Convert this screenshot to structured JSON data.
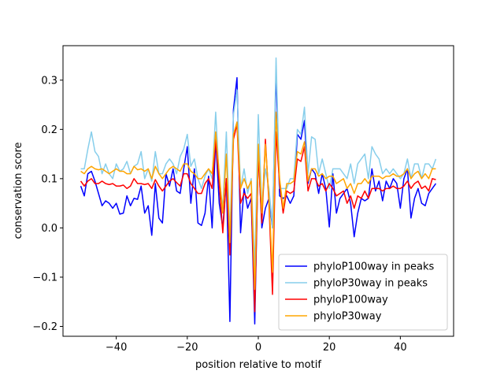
{
  "chart_data": {
    "type": "line",
    "title": "",
    "xlabel": "position relative to motif",
    "ylabel": "conservation score",
    "xlim": [
      -55,
      55
    ],
    "ylim": [
      -0.22,
      0.37
    ],
    "xticks": [
      -40,
      -20,
      0,
      20,
      40
    ],
    "xtick_labels": [
      "−40",
      "−20",
      "0",
      "20",
      "40"
    ],
    "yticks": [
      -0.2,
      -0.1,
      0.0,
      0.1,
      0.2,
      0.3
    ],
    "ytick_labels": [
      "−0.2",
      "−0.1",
      "0.0",
      "0.1",
      "0.2",
      "0.3"
    ],
    "grid": false,
    "legend_position": "lower-right",
    "x": [
      -50,
      -49,
      -48,
      -47,
      -46,
      -45,
      -44,
      -43,
      -42,
      -41,
      -40,
      -39,
      -38,
      -37,
      -36,
      -35,
      -34,
      -33,
      -32,
      -31,
      -30,
      -29,
      -28,
      -27,
      -26,
      -25,
      -24,
      -23,
      -22,
      -21,
      -20,
      -19,
      -18,
      -17,
      -16,
      -15,
      -14,
      -13,
      -12,
      -11,
      -10,
      -9,
      -8,
      -7,
      -6,
      -5,
      -4,
      -3,
      -2,
      -1,
      0,
      1,
      2,
      3,
      4,
      5,
      6,
      7,
      8,
      9,
      10,
      11,
      12,
      13,
      14,
      15,
      16,
      17,
      18,
      19,
      20,
      21,
      22,
      23,
      24,
      25,
      26,
      27,
      28,
      29,
      30,
      31,
      32,
      33,
      34,
      35,
      36,
      37,
      38,
      39,
      40,
      41,
      42,
      43,
      44,
      45,
      46,
      47,
      48,
      49,
      50
    ],
    "series": [
      {
        "name": "phyloP100way in peaks",
        "color": "#0000ff",
        "values": [
          0.085,
          0.065,
          0.11,
          0.115,
          0.095,
          0.07,
          0.045,
          0.055,
          0.05,
          0.04,
          0.05,
          0.028,
          0.03,
          0.065,
          0.045,
          0.06,
          0.058,
          0.085,
          0.03,
          0.045,
          -0.015,
          0.09,
          0.02,
          0.01,
          0.11,
          0.085,
          0.12,
          0.075,
          0.07,
          0.12,
          0.165,
          0.05,
          0.12,
          0.01,
          0.005,
          0.03,
          0.105,
          0.0,
          0.18,
          0.05,
          0.0,
          0.1,
          -0.19,
          0.24,
          0.305,
          -0.01,
          0.08,
          0.04,
          0.06,
          -0.195,
          0.16,
          0.0,
          0.04,
          0.06,
          0.0,
          0.32,
          0.065,
          0.06,
          0.065,
          0.05,
          0.065,
          0.19,
          0.18,
          0.218,
          0.09,
          0.12,
          0.11,
          0.07,
          0.11,
          0.08,
          0.002,
          0.11,
          0.03,
          0.06,
          0.07,
          0.08,
          0.05,
          -0.018,
          0.03,
          0.06,
          0.055,
          0.06,
          0.12,
          0.075,
          0.095,
          0.055,
          0.095,
          0.08,
          0.1,
          0.09,
          0.04,
          0.1,
          0.12,
          0.02,
          0.06,
          0.08,
          0.05,
          0.045,
          0.07,
          0.08,
          0.09
        ]
      },
      {
        "name": "phyloP30way in peaks",
        "color": "#87ceeb",
        "values": [
          0.12,
          0.12,
          0.16,
          0.195,
          0.155,
          0.145,
          0.11,
          0.13,
          0.11,
          0.1,
          0.13,
          0.115,
          0.12,
          0.135,
          0.11,
          0.125,
          0.13,
          0.155,
          0.1,
          0.12,
          0.095,
          0.155,
          0.11,
          0.11,
          0.13,
          0.14,
          0.13,
          0.11,
          0.145,
          0.16,
          0.19,
          0.125,
          0.14,
          0.1,
          0.08,
          0.105,
          0.12,
          0.1,
          0.235,
          0.1,
          0.04,
          0.195,
          -0.015,
          0.23,
          0.28,
          0.08,
          0.12,
          0.07,
          0.1,
          -0.08,
          0.23,
          0.04,
          0.12,
          0.08,
          0.0,
          0.345,
          0.08,
          0.08,
          0.08,
          0.1,
          0.1,
          0.2,
          0.19,
          0.245,
          0.11,
          0.185,
          0.18,
          0.11,
          0.14,
          0.11,
          0.08,
          0.12,
          0.12,
          0.12,
          0.11,
          0.1,
          0.13,
          0.09,
          0.13,
          0.14,
          0.15,
          0.1,
          0.165,
          0.15,
          0.14,
          0.11,
          0.12,
          0.11,
          0.12,
          0.11,
          0.1,
          0.11,
          0.14,
          0.1,
          0.13,
          0.13,
          0.1,
          0.13,
          0.13,
          0.12,
          0.14
        ]
      },
      {
        "name": "phyloP100way",
        "color": "#ff0000",
        "values": [
          0.095,
          0.085,
          0.095,
          0.1,
          0.09,
          0.09,
          0.095,
          0.09,
          0.088,
          0.09,
          0.085,
          0.085,
          0.087,
          0.08,
          0.085,
          0.1,
          0.09,
          0.09,
          0.088,
          0.09,
          0.08,
          0.098,
          0.085,
          0.075,
          0.085,
          0.095,
          0.1,
          0.092,
          0.085,
          0.11,
          0.11,
          0.09,
          0.08,
          0.07,
          0.07,
          0.09,
          0.1,
          0.08,
          0.18,
          0.09,
          -0.01,
          0.1,
          -0.055,
          0.18,
          0.21,
          0.05,
          0.07,
          0.06,
          0.07,
          -0.17,
          0.15,
          0.01,
          0.18,
          0.05,
          -0.135,
          0.195,
          0.09,
          0.03,
          0.075,
          0.07,
          0.075,
          0.14,
          0.135,
          0.165,
          0.075,
          0.1,
          0.1,
          0.085,
          0.09,
          0.075,
          0.09,
          0.08,
          0.065,
          0.07,
          0.075,
          0.05,
          0.065,
          0.04,
          0.065,
          0.06,
          0.075,
          0.06,
          0.08,
          0.08,
          0.08,
          0.075,
          0.08,
          0.08,
          0.085,
          0.08,
          0.08,
          0.085,
          0.095,
          0.08,
          0.09,
          0.095,
          0.08,
          0.085,
          0.075,
          0.1,
          0.098
        ]
      },
      {
        "name": "phyloP30way",
        "color": "#ffa500",
        "values": [
          0.115,
          0.11,
          0.12,
          0.125,
          0.12,
          0.118,
          0.12,
          0.115,
          0.11,
          0.115,
          0.12,
          0.115,
          0.115,
          0.11,
          0.11,
          0.125,
          0.118,
          0.12,
          0.115,
          0.12,
          0.1,
          0.125,
          0.11,
          0.1,
          0.11,
          0.12,
          0.125,
          0.12,
          0.115,
          0.13,
          0.13,
          0.115,
          0.11,
          0.1,
          0.1,
          0.11,
          0.12,
          0.11,
          0.195,
          0.11,
          0.03,
          0.15,
          -0.03,
          0.19,
          0.215,
          0.08,
          0.1,
          0.08,
          0.095,
          -0.125,
          0.17,
          0.03,
          0.17,
          0.06,
          -0.09,
          0.235,
          0.1,
          0.04,
          0.09,
          0.09,
          0.095,
          0.155,
          0.15,
          0.175,
          0.095,
          0.12,
          0.12,
          0.105,
          0.11,
          0.1,
          0.105,
          0.105,
          0.09,
          0.095,
          0.1,
          0.08,
          0.09,
          0.07,
          0.09,
          0.09,
          0.1,
          0.09,
          0.105,
          0.105,
          0.105,
          0.1,
          0.105,
          0.105,
          0.11,
          0.105,
          0.105,
          0.11,
          0.12,
          0.1,
          0.11,
          0.115,
          0.1,
          0.11,
          0.1,
          0.12,
          0.12
        ]
      }
    ]
  }
}
